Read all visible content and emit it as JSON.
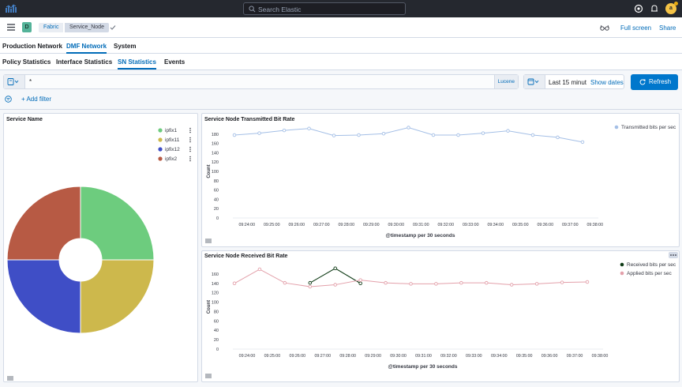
{
  "header": {
    "search_placeholder": "Search Elastic",
    "avatar_letter": "a"
  },
  "breadcrumb": {
    "space_letter": "D",
    "items": [
      "Fabric",
      "Service_Node"
    ],
    "full_screen": "Full screen",
    "share": "Share"
  },
  "nav": {
    "primary": [
      "Production Network",
      "DMF Network",
      "System"
    ],
    "primary_active": "DMF Network",
    "secondary": [
      "Policy Statistics",
      "Interface Statistics",
      "SN Statistics",
      "Events"
    ],
    "secondary_active": "SN Statistics"
  },
  "query": {
    "text": "*",
    "language": "Lucene",
    "time_range": "Last 15 minut",
    "show_dates": "Show dates",
    "refresh": "Refresh",
    "add_filter": "+ Add filter"
  },
  "colors": {
    "accent": "#006bb8",
    "button": "#0077cc"
  },
  "chart_data": [
    {
      "type": "pie",
      "title": "Service Name",
      "donut": true,
      "categories": [
        "ipfix1",
        "ipfix11",
        "ipfix12",
        "ipfix2"
      ],
      "values": [
        25,
        25,
        25,
        25
      ],
      "colors": [
        "#6dcc7e",
        "#cdb84c",
        "#3f4ec6",
        "#b75a44"
      ],
      "legend": "top-right"
    },
    {
      "type": "line",
      "title": "Service Node Transmitted Bit Rate",
      "xlabel": "@timestamp per 30 seconds",
      "ylabel": "Count",
      "ylim": [
        0,
        200
      ],
      "yticks": [
        0,
        20,
        40,
        60,
        80,
        100,
        120,
        140,
        160,
        180
      ],
      "xticks": [
        "09:24:00",
        "09:25:00",
        "09:26:00",
        "09:27:00",
        "09:28:00",
        "09:29:00",
        "09:30:00",
        "09:31:00",
        "09:32:00",
        "09:33:00",
        "09:34:00",
        "09:35:00",
        "09:36:00",
        "09:37:00",
        "09:38:00"
      ],
      "x": [
        "09:23:30",
        "09:24:00",
        "09:24:30",
        "09:25:00",
        "09:25:30",
        "09:26:00",
        "09:26:30",
        "09:27:00",
        "09:27:30",
        "09:28:00",
        "09:28:30",
        "09:29:00",
        "09:29:30",
        "09:30:00",
        "09:30:30",
        "09:31:00",
        "09:31:30",
        "09:32:00",
        "09:32:30",
        "09:33:00",
        "09:33:30",
        "09:34:00",
        "09:34:30",
        "09:35:00",
        "09:35:30",
        "09:36:00",
        "09:36:30",
        "09:37:00",
        "09:37:30"
      ],
      "series": [
        {
          "name": "Transmitted bits per sec",
          "color": "#a4bfe6",
          "values": [
            178,
            null,
            182,
            null,
            188,
            null,
            192,
            null,
            177,
            null,
            178,
            null,
            181,
            null,
            194,
            null,
            178,
            null,
            178,
            null,
            182,
            null,
            187,
            null,
            178,
            null,
            173,
            null,
            163
          ]
        }
      ],
      "legend": "top-right"
    },
    {
      "type": "line",
      "title": "Service Node Received Bit Rate",
      "xlabel": "@timestamp per 30 seconds",
      "ylabel": "Count",
      "ylim": [
        0,
        180
      ],
      "yticks": [
        0,
        20,
        40,
        60,
        80,
        100,
        120,
        140,
        160
      ],
      "xticks": [
        "09:24:00",
        "09:25:00",
        "09:26:00",
        "09:27:00",
        "09:28:00",
        "09:29:00",
        "09:30:00",
        "09:31:00",
        "09:32:00",
        "09:33:00",
        "09:34:00",
        "09:35:00",
        "09:36:00",
        "09:37:00",
        "09:38:00"
      ],
      "x": [
        "09:23:30",
        "09:24:00",
        "09:24:30",
        "09:25:00",
        "09:25:30",
        "09:26:00",
        "09:26:30",
        "09:27:00",
        "09:27:30",
        "09:28:00",
        "09:28:30",
        "09:29:00",
        "09:29:30",
        "09:30:00",
        "09:30:30",
        "09:31:00",
        "09:31:30",
        "09:32:00",
        "09:32:30",
        "09:33:00",
        "09:33:30",
        "09:34:00",
        "09:34:30",
        "09:35:00",
        "09:35:30",
        "09:36:00",
        "09:36:30",
        "09:37:00",
        "09:37:30"
      ],
      "series": [
        {
          "name": "Received bits per sec",
          "color": "#0f3b16",
          "values": [
            null,
            null,
            null,
            null,
            null,
            null,
            141,
            null,
            172,
            null,
            140,
            null,
            null,
            null,
            null,
            null,
            null,
            null,
            null,
            null,
            null,
            null,
            null,
            null,
            null,
            null,
            null,
            null,
            null
          ]
        },
        {
          "name": "Applied bits per sec",
          "color": "#e3a0aa",
          "values": [
            140,
            null,
            170,
            null,
            141,
            null,
            133,
            null,
            137,
            null,
            147,
            null,
            141,
            null,
            139,
            null,
            139,
            null,
            141,
            null,
            141,
            null,
            137,
            null,
            139,
            null,
            142,
            null,
            143
          ]
        }
      ],
      "legend": "top-right"
    }
  ]
}
